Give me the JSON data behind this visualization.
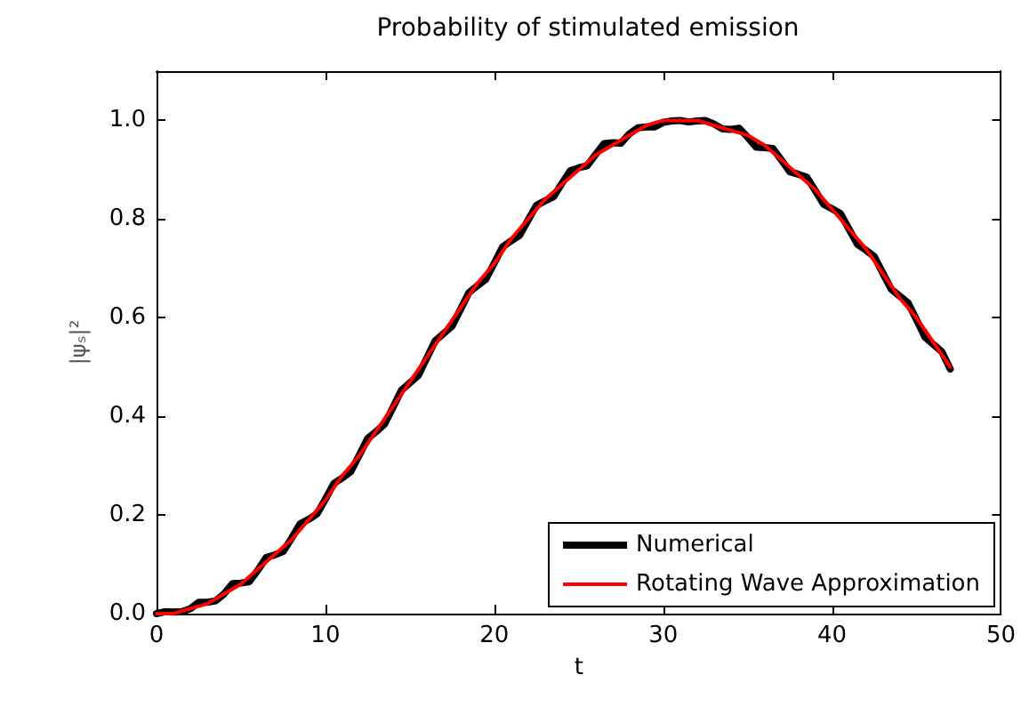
{
  "chart_data": {
    "type": "line",
    "title": "Probability of stimulated emission",
    "xlabel": "t",
    "ylabel": "|ψₛ|²",
    "xlim": [
      0,
      50
    ],
    "xticks": [
      0,
      10,
      20,
      30,
      40,
      50
    ],
    "ylim": [
      0,
      1.1
    ],
    "yticks": [
      {
        "value": 0,
        "label": "0.0"
      },
      {
        "value": 0.2,
        "label": "0.2"
      },
      {
        "value": 0.4,
        "label": "0.4"
      },
      {
        "value": 0.6,
        "label": "0.6"
      },
      {
        "value": 0.8,
        "label": "0.8"
      },
      {
        "value": 1,
        "label": "1.0"
      }
    ],
    "grid": false,
    "legend": "bottom right",
    "marker": "none",
    "line_style": "solid",
    "series": [
      {
        "name": "Numerical",
        "color": "#000000",
        "x": [
          0,
          0.5,
          1,
          1.5,
          2,
          2.5,
          3,
          3.5,
          4,
          4.5,
          5,
          5.5,
          6,
          6.5,
          7,
          7.5,
          8,
          8.5,
          9,
          9.5,
          10,
          10.5,
          11,
          11.5,
          12,
          12.5,
          13,
          13.5,
          14,
          14.5,
          15,
          15.5,
          16,
          16.5,
          17,
          17.5,
          18,
          18.5,
          19,
          19.5,
          20,
          20.5,
          21,
          21.5,
          22,
          22.5,
          23,
          23.5,
          24,
          24.5,
          25,
          25.5,
          26,
          26.5,
          27,
          27.5,
          28,
          28.5,
          29,
          29.5,
          30,
          30.5,
          31,
          31.5,
          32,
          32.5,
          33,
          33.5,
          34,
          34.5,
          35,
          35.5,
          36,
          36.5,
          37,
          37.5,
          38,
          38.5,
          39,
          39.5,
          40,
          40.5,
          41,
          41.5,
          42,
          42.5,
          43,
          43.5,
          44,
          44.5,
          45,
          45.5,
          46,
          46.5,
          47
        ],
        "values": [
          0,
          0.004,
          0.003,
          0.004,
          0.01,
          0.023,
          0.023,
          0.026,
          0.04,
          0.061,
          0.062,
          0.065,
          0.088,
          0.114,
          0.119,
          0.126,
          0.153,
          0.182,
          0.191,
          0.202,
          0.232,
          0.264,
          0.275,
          0.288,
          0.321,
          0.355,
          0.369,
          0.384,
          0.418,
          0.453,
          0.468,
          0.483,
          0.518,
          0.553,
          0.568,
          0.583,
          0.617,
          0.651,
          0.665,
          0.678,
          0.711,
          0.744,
          0.756,
          0.767,
          0.798,
          0.828,
          0.837,
          0.845,
          0.872,
          0.898,
          0.904,
          0.908,
          0.931,
          0.953,
          0.955,
          0.954,
          0.973,
          0.985,
          0.987,
          0.987,
          0.996,
          0.999,
          1.0,
          0.997,
          0.999,
          1.0,
          0.993,
          0.983,
          0.982,
          0.984,
          0.966,
          0.946,
          0.945,
          0.943,
          0.92,
          0.896,
          0.891,
          0.885,
          0.858,
          0.83,
          0.821,
          0.811,
          0.78,
          0.749,
          0.737,
          0.724,
          0.691,
          0.658,
          0.644,
          0.63,
          0.596,
          0.561,
          0.546,
          0.531,
          0.496
        ]
      },
      {
        "name": "Rotating Wave Approximation",
        "color": "#ff0000",
        "x": [
          0,
          1,
          2,
          3,
          4,
          5,
          6,
          7,
          8,
          9,
          10,
          11,
          12,
          13,
          14,
          15,
          16,
          17,
          18,
          19,
          20,
          21,
          22,
          23,
          24,
          25,
          26,
          27,
          28,
          29,
          30,
          31,
          32,
          33,
          34,
          35,
          36,
          37,
          38,
          39,
          40,
          41,
          42,
          43,
          44,
          45,
          46,
          47
        ],
        "values": [
          0,
          0,
          0.01,
          0.02,
          0.04,
          0.06,
          0.09,
          0.12,
          0.15,
          0.19,
          0.23,
          0.28,
          0.32,
          0.37,
          0.42,
          0.47,
          0.52,
          0.57,
          0.62,
          0.67,
          0.71,
          0.76,
          0.8,
          0.84,
          0.87,
          0.9,
          0.93,
          0.95,
          0.97,
          0.99,
          1,
          1,
          1,
          0.99,
          0.98,
          0.97,
          0.95,
          0.92,
          0.89,
          0.86,
          0.82,
          0.78,
          0.74,
          0.69,
          0.64,
          0.6,
          0.55,
          0.5
        ]
      }
    ]
  }
}
